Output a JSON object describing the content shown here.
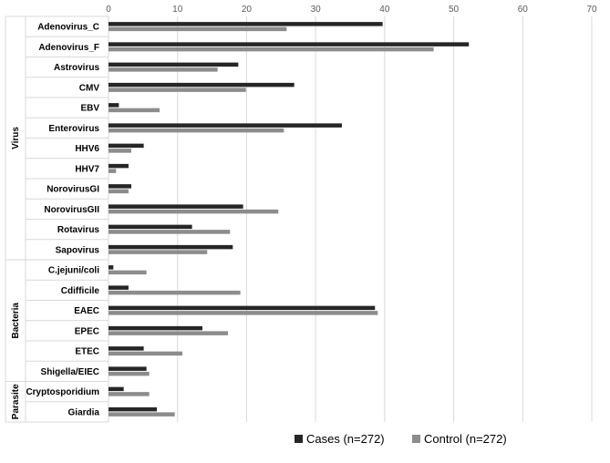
{
  "chart_data": {
    "type": "bar",
    "orientation": "horizontal",
    "title": "",
    "xlabel": "",
    "ylabel": "",
    "xlim": [
      0,
      70
    ],
    "x_ticks": [
      0,
      10,
      20,
      30,
      40,
      50,
      60,
      70
    ],
    "x_axis_position": "top",
    "grid": true,
    "legend_position": "bottom-right",
    "colors": {
      "cases": "#262626",
      "control": "#8c8c8c",
      "grid": "#d9d9d9"
    },
    "groups": [
      {
        "name": "Virus",
        "count": 12
      },
      {
        "name": "Bacteria",
        "count": 6
      },
      {
        "name": "Parasite",
        "count": 2
      }
    ],
    "categories": [
      "Adenovirus_C",
      "Adenovirus_F",
      "Astrovirus",
      "CMV",
      "EBV",
      "Enterovirus",
      "HHV6",
      "HHV7",
      "NorovirusGI",
      "NorovirusGII",
      "Rotavirus",
      "Sapovirus",
      "C.jejuni/coli",
      "Cdifficile",
      "EAEC",
      "EPEC",
      "ETEC",
      "Shigella/EIEC",
      "Cryptosporidium",
      "Giardia"
    ],
    "series": [
      {
        "name": "Cases (n=272)",
        "values": [
          39.7,
          52.2,
          18.8,
          26.9,
          1.5,
          33.8,
          5.1,
          2.9,
          3.3,
          19.5,
          12.1,
          18.0,
          0.7,
          2.9,
          38.6,
          13.6,
          5.1,
          5.5,
          2.2,
          7.0
        ]
      },
      {
        "name": "Control (n=272)",
        "values": [
          25.8,
          47.1,
          15.8,
          19.9,
          7.4,
          25.4,
          3.3,
          1.1,
          2.9,
          24.6,
          17.6,
          14.3,
          5.5,
          19.1,
          39.0,
          17.3,
          10.7,
          5.9,
          5.9,
          9.6
        ]
      }
    ]
  }
}
